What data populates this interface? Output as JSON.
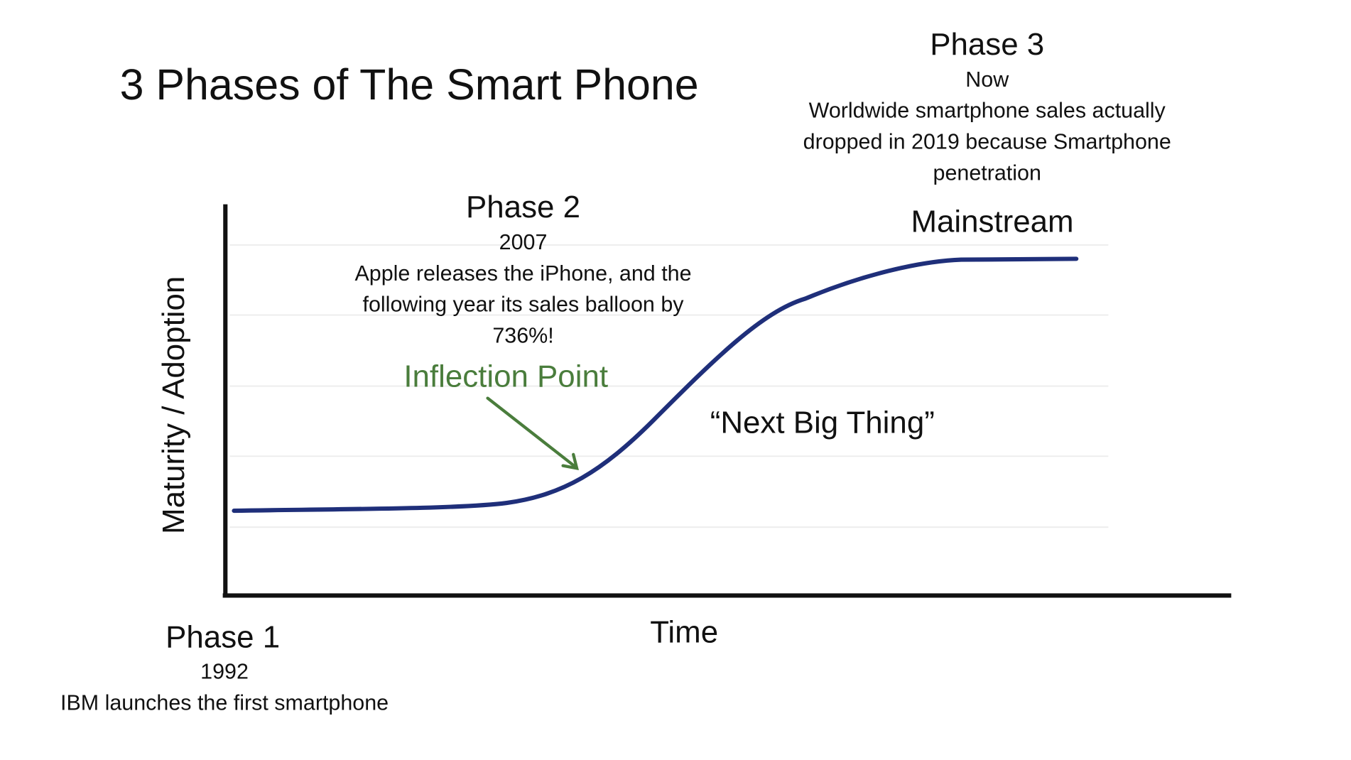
{
  "title": "3 Phases of The Smart Phone",
  "axes": {
    "y_label": "Maturity / Adoption",
    "x_label": "Time"
  },
  "phase1": {
    "heading": "Phase 1",
    "year": "1992",
    "description": "IBM launches the first smartphone"
  },
  "phase2": {
    "heading": "Phase 2",
    "year": "2007",
    "description_lines": [
      "Apple releases the iPhone, and the",
      "following year its sales balloon by",
      "736%!"
    ]
  },
  "phase3": {
    "heading": "Phase 3",
    "year": "Now",
    "description_lines": [
      "Worldwide smartphone sales actually",
      "dropped in 2019 because Smartphone",
      "penetration"
    ]
  },
  "labels": {
    "inflection": "Inflection Point",
    "next_big_thing": "“Next Big Thing”",
    "mainstream": "Mainstream"
  },
  "colors": {
    "curve": "#1f2f7a",
    "inflection": "#4a7d3c",
    "axis": "#111111",
    "grid": "#ececec"
  }
}
